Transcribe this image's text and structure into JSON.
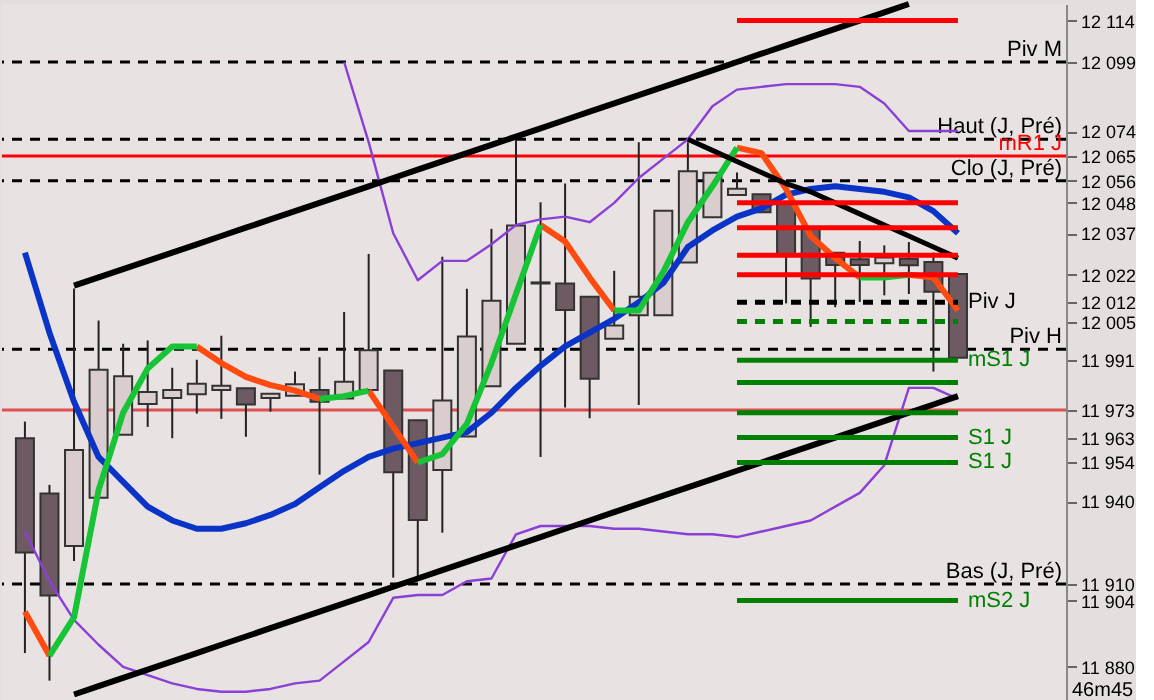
{
  "chart_data": {
    "type": "candlestick",
    "categories": [
      null,
      null,
      null,
      null,
      null,
      null,
      null,
      null,
      null,
      null,
      null,
      null,
      null,
      null,
      null,
      null,
      null,
      null,
      null,
      null,
      null,
      null,
      null,
      null,
      null,
      null,
      null,
      null,
      null,
      null,
      null,
      null,
      null,
      null,
      null,
      null,
      null,
      null,
      null
    ],
    "ohlc": [
      [
        11962.8,
        11968.8,
        11885,
        11921.4
      ],
      [
        11942.8,
        11945.9,
        11875,
        11905.8
      ],
      [
        11923.8,
        12017,
        11918.3,
        11958.5
      ],
      [
        11941.2,
        12005.4,
        11941.2,
        11987.6
      ],
      [
        11964,
        11997,
        11964,
        11985.2
      ],
      [
        11975.2,
        11998.2,
        11966.9,
        11979.5
      ],
      [
        11977.3,
        11988.3,
        11962.8,
        11980.2
      ],
      [
        11978.7,
        11991.2,
        11971.7,
        11982.5
      ],
      [
        11980.2,
        11999.9,
        11969.8,
        11981.8
      ],
      [
        11980.9,
        11980.9,
        11963.3,
        11975
      ],
      [
        11977.3,
        11979,
        11972.4,
        11978.9
      ],
      [
        11978.2,
        11986.9,
        11978,
        11982.3
      ],
      [
        11980.2,
        11992.1,
        11949.6,
        11976
      ],
      [
        11977.2,
        12008.5,
        11977.2,
        11983.2
      ],
      [
        11980.2,
        12029.5,
        11980.2,
        11994.6
      ],
      [
        11987.3,
        11987.3,
        11912.3,
        11950.5
      ],
      [
        11969.3,
        11969.3,
        11912.3,
        11933.2
      ],
      [
        11951.3,
        12028.5,
        11928.6,
        11976.4
      ],
      [
        11963.4,
        12016.9,
        11963.4,
        11999.6
      ],
      [
        11981.6,
        12038.6,
        11981.6,
        12012.6
      ],
      [
        11997,
        12071.3,
        11997,
        12039.8
      ],
      [
        12018.8,
        12048.2,
        11956,
        12019.2
      ],
      [
        12018.8,
        12055,
        11973.9,
        12009.2
      ],
      [
        12014,
        12014,
        11970,
        11984.3
      ],
      [
        11998.8,
        12023.4,
        11998.8,
        12003.6
      ],
      [
        12007.3,
        12069.9,
        11974.8,
        12014
      ],
      [
        12007.3,
        12045.1,
        12007.3,
        12045.1
      ],
      [
        12026.4,
        12069.9,
        12026.4,
        12059.4
      ],
      [
        12042.8,
        12058.9,
        12042.8,
        12058.9
      ],
      [
        12050.8,
        12059,
        12050.8,
        12053.1
      ],
      [
        12051.1,
        12051.1,
        12044.6,
        12044.6
      ],
      [
        12048.2,
        12048.2,
        12011.6,
        12029.5
      ],
      [
        12038.6,
        12038.6,
        12003.1,
        12020.6
      ],
      [
        12029.9,
        12029.9,
        12010.2,
        12025.5
      ],
      [
        12027.6,
        12034.2,
        12012.1,
        12025.5
      ],
      [
        12026.1,
        12032.6,
        12014.5,
        12028.2
      ],
      [
        12027.8,
        12033.8,
        12015,
        12025.4
      ],
      [
        12026.6,
        12030,
        11986.9,
        12015.8
      ],
      [
        12022.2,
        12022.2,
        11991.9,
        11991.9
      ]
    ],
    "colors": [
      "#6e5a63",
      "#6e5a63",
      "#d9cdcd",
      "#d9cdcd",
      "#d9cdcd",
      "#d9cdcd",
      "#d9cdcd",
      "#d9cdcd",
      "#d9cdcd",
      "#6e5a63",
      "#d9cdcd",
      "#d9cdcd",
      "#6e5a63",
      "#d9cdcd",
      "#d9cdcd",
      "#6e5a63",
      "#6e5a63",
      "#d9cdcd",
      "#d9cdcd",
      "#d9cdcd",
      "#d9cdcd",
      "#d9cdcd",
      "#6e5a63",
      "#6e5a63",
      "#d9cdcd",
      "#d9cdcd",
      "#d9cdcd",
      "#d9cdcd",
      "#d9cdcd",
      "#d9cdcd",
      "#6e5a63",
      "#6e5a63",
      "#6e5a63",
      "#6e5a63",
      "#6e5a63",
      "#d9cdcd",
      "#6e5a63",
      "#6e5a63",
      "#6e5a63"
    ],
    "ylim": [
      11868,
      12120
    ],
    "yticks": [
      {
        "value": 12114,
        "label": "12 114"
      },
      {
        "value": 12099,
        "label": "12 099"
      },
      {
        "value": 12074,
        "label": "12 074"
      },
      {
        "value": 12065,
        "label": "12 065"
      },
      {
        "value": 12056,
        "label": "12 056"
      },
      {
        "value": 12048,
        "label": "12 048"
      },
      {
        "value": 12037,
        "label": "12 037"
      },
      {
        "value": 12022,
        "label": "12 022"
      },
      {
        "value": 12012,
        "label": "12 012"
      },
      {
        "value": 12005,
        "label": "12 005"
      },
      {
        "value": 11991,
        "label": "11 991"
      },
      {
        "value": 11973,
        "label": "11 973"
      },
      {
        "value": 11963,
        "label": "11 963"
      },
      {
        "value": 11954,
        "label": "11 954"
      },
      {
        "value": 11940,
        "label": "11 940"
      },
      {
        "value": 11910,
        "label": "11 910"
      },
      {
        "value": 11904,
        "label": "11 904"
      },
      {
        "value": 11880,
        "label": "11 880"
      }
    ],
    "tick_labels": "y",
    "series": [
      {
        "type": "line",
        "color": "#8b3fd6",
        "values": [
          null,
          null,
          null,
          null,
          null,
          null,
          null,
          null,
          null,
          null,
          null,
          null,
          null,
          12099,
          12070,
          12037,
          12020,
          12027,
          12027,
          12033,
          12040,
          12042,
          12043,
          12041,
          12048,
          12057,
          12064,
          12071,
          12083,
          12089,
          12090,
          12091,
          12091,
          12091,
          12090,
          12084,
          12074,
          12074,
          12074
        ]
      },
      {
        "type": "line",
        "color": "#8b3fd6",
        "values": [
          11929,
          11911,
          11897,
          11888,
          11880,
          11877,
          11874,
          11872,
          11871,
          11871,
          11872,
          11874,
          11875,
          11882,
          11889,
          11905,
          11906,
          11906,
          11911,
          11912,
          11928,
          11931,
          11931,
          11931,
          11930,
          11930,
          11929,
          11928,
          11928,
          11927,
          11929,
          11931,
          11933,
          11938,
          11943,
          11953,
          11981,
          11981,
          11977
        ]
      },
      {
        "type": "line",
        "color": "#0a33c8",
        "values": [
          12030,
          12001,
          11976,
          11956,
          11947,
          11938,
          11933,
          11930,
          11930,
          11932,
          11935,
          11939,
          11945,
          11951,
          11956,
          11959,
          11961,
          11963,
          11965,
          11972,
          11981,
          11989,
          11996,
          12001,
          12006,
          12012,
          12019,
          12032,
          12038,
          12043,
          12046,
          12051,
          12053,
          12054,
          12053,
          12052,
          12050,
          12045,
          12037
        ]
      },
      {
        "type": "line",
        "color": "#ff4a10",
        "values": [
          11900,
          11884,
          null,
          null,
          null,
          null,
          null,
          11996,
          11990,
          11985,
          11982,
          11980,
          11977,
          null,
          11980,
          11967,
          11954,
          null,
          null,
          null,
          null,
          12040,
          12034,
          12021,
          12009,
          null,
          null,
          null,
          null,
          12068,
          12066,
          12053,
          12036,
          12028,
          12021,
          null,
          12022,
          12021,
          12009
        ]
      },
      {
        "type": "line",
        "color": "#16c436",
        "values": [
          null,
          11884,
          11898,
          11944,
          11972,
          11988,
          11996,
          11996,
          null,
          null,
          null,
          null,
          11977,
          11978,
          11980,
          null,
          11954,
          11957,
          11968,
          11990,
          12015,
          12040,
          null,
          null,
          12009,
          12009,
          12023,
          12041,
          12054,
          12068,
          null,
          null,
          null,
          null,
          12021,
          12021,
          12022,
          null,
          null
        ]
      },
      {
        "type": "line",
        "color": "#000000",
        "values": [
          null,
          null,
          12018,
          12021,
          12024,
          12027,
          12030,
          12033,
          12036,
          12039,
          12042,
          12045,
          12048,
          12051,
          12054,
          12057,
          12060,
          12063,
          12066,
          12069,
          12072,
          12075,
          12078,
          12081,
          12084,
          12087,
          12090,
          12093,
          12096,
          12099,
          12102,
          12105,
          12108,
          12111,
          12114,
          12117,
          12120,
          null,
          null
        ]
      },
      {
        "type": "line",
        "color": "#000000",
        "values": [
          null,
          null,
          11870,
          11873,
          11876,
          11879,
          11882,
          11885,
          11888,
          11891,
          11894,
          11897,
          11900,
          11903,
          11906,
          11909,
          11912,
          11915,
          11918,
          11921,
          11924,
          11927,
          11930,
          11933,
          11936,
          11939,
          11942,
          11945,
          11948,
          11951,
          11954,
          11957,
          11960,
          11963,
          11966,
          11969,
          11972,
          11975,
          11978
        ]
      },
      {
        "type": "line",
        "color": "#000000",
        "values": [
          null,
          null,
          null,
          null,
          null,
          null,
          null,
          null,
          null,
          null,
          null,
          null,
          null,
          null,
          null,
          null,
          null,
          null,
          null,
          null,
          null,
          null,
          null,
          null,
          null,
          null,
          null,
          12071,
          12067,
          12063,
          12059,
          12055,
          12052,
          12048,
          12044,
          12040,
          12036,
          12032,
          12028
        ]
      },
      {
        "type": "line",
        "color": "#ff0000",
        "values": [
          null,
          null,
          null,
          null,
          null,
          null,
          null,
          null,
          null,
          null,
          null,
          null,
          null,
          null,
          null,
          null,
          null,
          null,
          null,
          null,
          null,
          null,
          null,
          null,
          null,
          null,
          null,
          null,
          null,
          12114,
          12114,
          12114,
          12114,
          12114,
          12114,
          12114,
          12114,
          12114,
          12114
        ]
      },
      {
        "type": "line",
        "color": "#ff0000",
        "values": [
          null,
          null,
          null,
          null,
          null,
          null,
          null,
          null,
          null,
          null,
          null,
          null,
          null,
          null,
          null,
          null,
          null,
          null,
          null,
          null,
          null,
          null,
          null,
          null,
          null,
          null,
          null,
          null,
          null,
          12048,
          12048,
          12048,
          12048,
          12048,
          12048,
          12048,
          12048,
          12048,
          12048
        ]
      },
      {
        "type": "line",
        "color": "#ff0000",
        "values": [
          null,
          null,
          null,
          null,
          null,
          null,
          null,
          null,
          null,
          null,
          null,
          null,
          null,
          null,
          null,
          null,
          null,
          null,
          null,
          null,
          null,
          null,
          null,
          null,
          null,
          null,
          null,
          null,
          null,
          12039,
          12039,
          12039,
          12039,
          12039,
          12039,
          12039,
          12039,
          12039,
          12039
        ]
      },
      {
        "type": "line",
        "color": "#ff0000",
        "values": [
          null,
          null,
          null,
          null,
          null,
          null,
          null,
          null,
          null,
          null,
          null,
          null,
          null,
          null,
          null,
          null,
          null,
          null,
          null,
          null,
          null,
          null,
          null,
          null,
          null,
          null,
          null,
          null,
          null,
          12029,
          12029,
          12029,
          12029,
          12029,
          12029,
          12029,
          12029,
          12029,
          12029
        ]
      },
      {
        "type": "line",
        "color": "#ff0000",
        "values": [
          null,
          null,
          null,
          null,
          null,
          null,
          null,
          null,
          null,
          null,
          null,
          null,
          null,
          null,
          null,
          null,
          null,
          null,
          null,
          null,
          null,
          null,
          null,
          null,
          null,
          null,
          null,
          null,
          null,
          12022,
          12022,
          12022,
          12022,
          12022,
          12022,
          12022,
          12022,
          12022,
          12022
        ]
      },
      {
        "type": "line",
        "name": "Piv J",
        "color": "#000000",
        "line_style": "dashed",
        "values": [
          null,
          null,
          null,
          null,
          null,
          null,
          null,
          null,
          null,
          null,
          null,
          null,
          null,
          null,
          null,
          null,
          null,
          null,
          null,
          null,
          null,
          null,
          null,
          null,
          null,
          null,
          null,
          null,
          null,
          12012,
          12012,
          12012,
          12012,
          12012,
          12012,
          12012,
          12012,
          12012,
          12012
        ]
      },
      {
        "type": "line",
        "color": "#008000",
        "line_style": "dashed",
        "values": [
          null,
          null,
          null,
          null,
          null,
          null,
          null,
          null,
          null,
          null,
          null,
          null,
          null,
          null,
          null,
          null,
          null,
          null,
          null,
          null,
          null,
          null,
          null,
          null,
          null,
          null,
          null,
          null,
          null,
          12005,
          12005,
          12005,
          12005,
          12005,
          12005,
          12005,
          12005,
          12005,
          12005
        ]
      },
      {
        "type": "line",
        "name": "mS1 J",
        "color": "#008000",
        "values": [
          null,
          null,
          null,
          null,
          null,
          null,
          null,
          null,
          null,
          null,
          null,
          null,
          null,
          null,
          null,
          null,
          null,
          null,
          null,
          null,
          null,
          null,
          null,
          null,
          null,
          null,
          null,
          null,
          null,
          11991,
          11991,
          11991,
          11991,
          11991,
          11991,
          11991,
          11991,
          11991,
          11991
        ]
      },
      {
        "type": "line",
        "color": "#008000",
        "values": [
          null,
          null,
          null,
          null,
          null,
          null,
          null,
          null,
          null,
          null,
          null,
          null,
          null,
          null,
          null,
          null,
          null,
          null,
          null,
          null,
          null,
          null,
          null,
          null,
          null,
          null,
          null,
          null,
          null,
          11983,
          11983,
          11983,
          11983,
          11983,
          11983,
          11983,
          11983,
          11983,
          11983
        ]
      },
      {
        "type": "line",
        "color": "#008000",
        "values": [
          null,
          null,
          null,
          null,
          null,
          null,
          null,
          null,
          null,
          null,
          null,
          null,
          null,
          null,
          null,
          null,
          null,
          null,
          null,
          null,
          null,
          null,
          null,
          null,
          null,
          null,
          null,
          null,
          null,
          11972,
          11972,
          11972,
          11972,
          11972,
          11972,
          11972,
          11972,
          11972,
          11972
        ]
      },
      {
        "type": "line",
        "name": "S1 J",
        "color": "#008000",
        "values": [
          null,
          null,
          null,
          null,
          null,
          null,
          null,
          null,
          null,
          null,
          null,
          null,
          null,
          null,
          null,
          null,
          null,
          null,
          null,
          null,
          null,
          null,
          null,
          null,
          null,
          null,
          null,
          null,
          null,
          11963,
          11963,
          11963,
          11963,
          11963,
          11963,
          11963,
          11963,
          11963,
          11963
        ]
      },
      {
        "type": "line",
        "name": "S1 J",
        "color": "#008000",
        "values": [
          null,
          null,
          null,
          null,
          null,
          null,
          null,
          null,
          null,
          null,
          null,
          null,
          null,
          null,
          null,
          null,
          null,
          null,
          null,
          null,
          null,
          null,
          null,
          null,
          null,
          null,
          null,
          null,
          null,
          11954,
          11954,
          11954,
          11954,
          11954,
          11954,
          11954,
          11954,
          11954,
          11954
        ]
      },
      {
        "type": "line",
        "name": "mS2 J",
        "color": "#008000",
        "values": [
          null,
          null,
          null,
          null,
          null,
          null,
          null,
          null,
          null,
          null,
          null,
          null,
          null,
          null,
          null,
          null,
          null,
          null,
          null,
          null,
          null,
          null,
          null,
          null,
          null,
          null,
          null,
          null,
          null,
          11904,
          11904,
          11904,
          11904,
          11904,
          11904,
          11904,
          11904,
          11904,
          11904
        ]
      }
    ],
    "ref_lines": [
      {
        "axis": "y",
        "value": 12099,
        "label": "Piv M",
        "color": "#000000",
        "line_style": "dashed"
      },
      {
        "axis": "y",
        "value": 12071,
        "label": "Haut (J, Pré)",
        "color": "#000000",
        "line_style": "dashed"
      },
      {
        "axis": "y",
        "value": 12065,
        "label": "mR1 J",
        "color": "#ff0000",
        "line_style": "solid"
      },
      {
        "axis": "y",
        "value": 12056,
        "label": "Clo (J, Pré)",
        "color": "#000000",
        "line_style": "dashed"
      },
      {
        "axis": "y",
        "value": 11995,
        "label": "Piv H",
        "color": "#000000",
        "line_style": "dashed"
      },
      {
        "axis": "y",
        "value": 11973,
        "color": "#e05050",
        "line_style": "solid"
      },
      {
        "axis": "y",
        "value": 11910,
        "label": "Bas (J, Pré)",
        "color": "#000000",
        "line_style": "dashed"
      }
    ],
    "annotations": [
      "46m45"
    ],
    "grid": false
  }
}
